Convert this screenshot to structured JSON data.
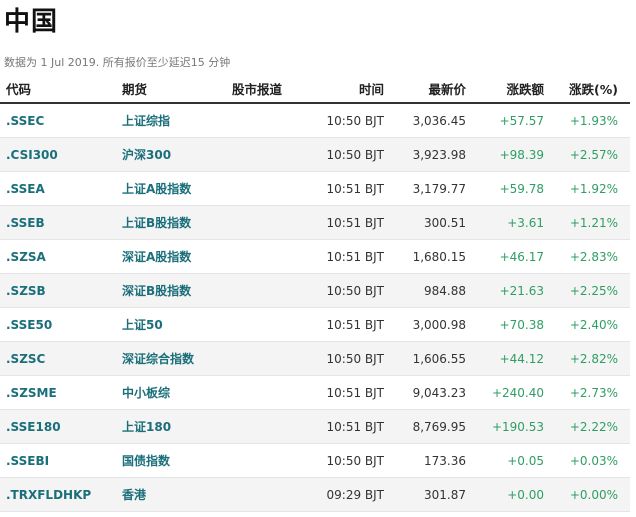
{
  "page": {
    "title": "中国",
    "subtitle": "数据为 1 Jul 2019. 所有报价至少延迟15 分钟"
  },
  "columns": {
    "code": "代码",
    "future": "期货",
    "report": "股市报道",
    "time": "时间",
    "price": "最新价",
    "change": "涨跌额",
    "pct": "涨跌(%)"
  },
  "colors": {
    "link": "#1b6f7a",
    "positive": "#2f9e64",
    "row_alt": "#f4f4f4"
  },
  "rows": [
    {
      "code": ".SSEC",
      "name": "上证综指",
      "time": "10:50 BJT",
      "price": "3,036.45",
      "change": "+57.57",
      "pct": "+1.93%"
    },
    {
      "code": ".CSI300",
      "name": "沪深300",
      "time": "10:50 BJT",
      "price": "3,923.98",
      "change": "+98.39",
      "pct": "+2.57%"
    },
    {
      "code": ".SSEA",
      "name": "上证A股指数",
      "time": "10:51 BJT",
      "price": "3,179.77",
      "change": "+59.78",
      "pct": "+1.92%"
    },
    {
      "code": ".SSEB",
      "name": "上证B股指数",
      "time": "10:51 BJT",
      "price": "300.51",
      "change": "+3.61",
      "pct": "+1.21%"
    },
    {
      "code": ".SZSA",
      "name": "深证A股指数",
      "time": "10:51 BJT",
      "price": "1,680.15",
      "change": "+46.17",
      "pct": "+2.83%"
    },
    {
      "code": ".SZSB",
      "name": "深证B股指数",
      "time": "10:50 BJT",
      "price": "984.88",
      "change": "+21.63",
      "pct": "+2.25%"
    },
    {
      "code": ".SSE50",
      "name": "上证50",
      "time": "10:51 BJT",
      "price": "3,000.98",
      "change": "+70.38",
      "pct": "+2.40%"
    },
    {
      "code": ".SZSC",
      "name": "深证综合指数",
      "time": "10:50 BJT",
      "price": "1,606.55",
      "change": "+44.12",
      "pct": "+2.82%"
    },
    {
      "code": ".SZSME",
      "name": "中小板综",
      "time": "10:51 BJT",
      "price": "9,043.23",
      "change": "+240.40",
      "pct": "+2.73%"
    },
    {
      "code": ".SSE180",
      "name": "上证180",
      "time": "10:51 BJT",
      "price": "8,769.95",
      "change": "+190.53",
      "pct": "+2.22%"
    },
    {
      "code": ".SSEBI",
      "name": "国债指数",
      "time": "10:50 BJT",
      "price": "173.36",
      "change": "+0.05",
      "pct": "+0.03%"
    },
    {
      "code": ".TRXFLDHKP",
      "name": "香港",
      "time": "09:29 BJT",
      "price": "301.87",
      "change": "+0.00",
      "pct": "+0.00%"
    }
  ]
}
